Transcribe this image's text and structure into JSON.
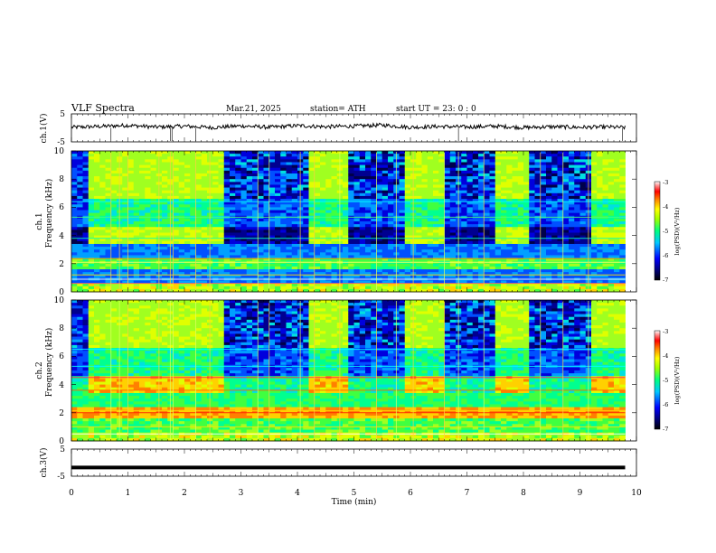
{
  "header": {
    "title": "VLF  Spectra",
    "date": "Mar.21, 2025",
    "station": "station= ATH",
    "start_ut": "start  UT  =    23: 0   : 0"
  },
  "chart_data": [
    {
      "type": "line",
      "name": "ch1-voltage",
      "ylabel": "ch.1(V)",
      "ylim": [
        -5,
        5
      ],
      "yticks": [
        "5",
        "-5"
      ],
      "xlim": [
        0,
        10
      ],
      "x_minutes": [
        0.0,
        0.5,
        1.0,
        1.5,
        2.0,
        2.5,
        3.0,
        3.5,
        4.0,
        4.5,
        5.0,
        5.5,
        6.0,
        6.5,
        7.0,
        7.5,
        8.0,
        8.5,
        9.0,
        9.5,
        9.8
      ],
      "values": [
        0.2,
        0.5,
        0.9,
        0.3,
        0.6,
        0.1,
        0.7,
        0.2,
        0.8,
        0.4,
        0.6,
        1.0,
        0.2,
        0.5,
        0.3,
        0.6,
        0.1,
        0.4,
        0.2,
        0.3,
        0.1
      ]
    },
    {
      "type": "heatmap",
      "name": "ch1-spectrogram",
      "ylabel_line1": "ch.1",
      "ylabel_line2": "Frequency  (kHz)",
      "ylim": [
        0,
        10
      ],
      "yticks": [
        "0",
        "2",
        "4",
        "6",
        "8",
        "10"
      ],
      "xlim": [
        0,
        10
      ],
      "colorbar": {
        "label": "log(PSD)(V²/Hz)",
        "range": [
          -7,
          -3
        ],
        "ticks": [
          "-3",
          "-4",
          "-5",
          "-6",
          "-7"
        ]
      },
      "transmitter_on_minutes": [
        [
          0.3,
          2.75
        ],
        [
          4.25,
          4.9
        ],
        [
          5.9,
          6.6
        ],
        [
          7.55,
          8.15
        ],
        [
          9.2,
          9.8
        ]
      ]
    },
    {
      "type": "heatmap",
      "name": "ch2-spectrogram",
      "ylabel_line1": "ch.2",
      "ylabel_line2": "Frequency  (kHz)",
      "ylim": [
        0,
        10
      ],
      "yticks": [
        "0",
        "2",
        "4",
        "6",
        "8",
        "10"
      ],
      "xlim": [
        0,
        10
      ],
      "colorbar": {
        "label": "log(PSD)(V²/Hz)",
        "range": [
          -7,
          -3
        ],
        "ticks": [
          "-3",
          "-4",
          "-5",
          "-6",
          "-7"
        ]
      },
      "transmitter_on_minutes": [
        [
          0.3,
          2.75
        ],
        [
          4.25,
          4.9
        ],
        [
          5.9,
          6.6
        ],
        [
          7.55,
          8.15
        ],
        [
          9.2,
          9.8
        ]
      ]
    },
    {
      "type": "line",
      "name": "ch3-voltage",
      "ylabel": "ch.3(V)",
      "ylim": [
        -5,
        5
      ],
      "yticks": [
        "5",
        "-5"
      ],
      "xlim": [
        0,
        10
      ],
      "x_minutes": [
        0,
        9.8
      ],
      "values": [
        -1.8,
        -1.8
      ],
      "xlabel": "Time  (min)",
      "xticks": [
        "0",
        "1",
        "2",
        "3",
        "4",
        "5",
        "6",
        "7",
        "8",
        "9",
        "10"
      ]
    }
  ]
}
